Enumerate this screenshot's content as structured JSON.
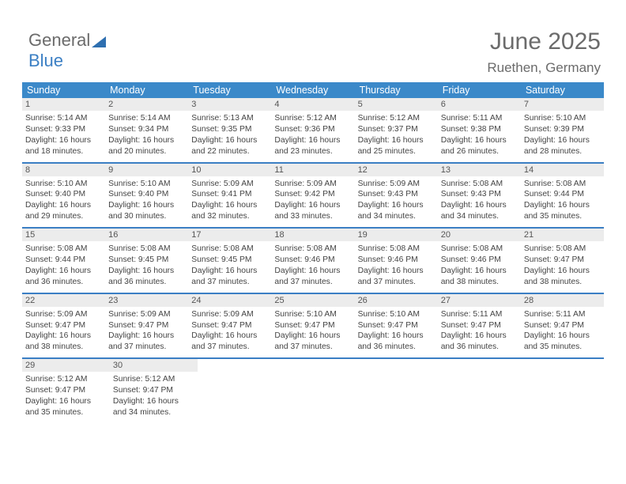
{
  "logo": {
    "text1": "General",
    "text2": "Blue"
  },
  "title": "June 2025",
  "location": "Ruethen, Germany",
  "colors": {
    "header_bg": "#3b89c9",
    "week_border": "#3b7fc4",
    "daynum_bg": "#ececec",
    "text": "#444444",
    "title_color": "#6b6b6b"
  },
  "day_headers": [
    "Sunday",
    "Monday",
    "Tuesday",
    "Wednesday",
    "Thursday",
    "Friday",
    "Saturday"
  ],
  "weeks": [
    [
      {
        "n": "1",
        "sr": "5:14 AM",
        "ss": "9:33 PM",
        "dlh": "16",
        "dlm": "18"
      },
      {
        "n": "2",
        "sr": "5:14 AM",
        "ss": "9:34 PM",
        "dlh": "16",
        "dlm": "20"
      },
      {
        "n": "3",
        "sr": "5:13 AM",
        "ss": "9:35 PM",
        "dlh": "16",
        "dlm": "22"
      },
      {
        "n": "4",
        "sr": "5:12 AM",
        "ss": "9:36 PM",
        "dlh": "16",
        "dlm": "23"
      },
      {
        "n": "5",
        "sr": "5:12 AM",
        "ss": "9:37 PM",
        "dlh": "16",
        "dlm": "25"
      },
      {
        "n": "6",
        "sr": "5:11 AM",
        "ss": "9:38 PM",
        "dlh": "16",
        "dlm": "26"
      },
      {
        "n": "7",
        "sr": "5:10 AM",
        "ss": "9:39 PM",
        "dlh": "16",
        "dlm": "28"
      }
    ],
    [
      {
        "n": "8",
        "sr": "5:10 AM",
        "ss": "9:40 PM",
        "dlh": "16",
        "dlm": "29"
      },
      {
        "n": "9",
        "sr": "5:10 AM",
        "ss": "9:40 PM",
        "dlh": "16",
        "dlm": "30"
      },
      {
        "n": "10",
        "sr": "5:09 AM",
        "ss": "9:41 PM",
        "dlh": "16",
        "dlm": "32"
      },
      {
        "n": "11",
        "sr": "5:09 AM",
        "ss": "9:42 PM",
        "dlh": "16",
        "dlm": "33"
      },
      {
        "n": "12",
        "sr": "5:09 AM",
        "ss": "9:43 PM",
        "dlh": "16",
        "dlm": "34"
      },
      {
        "n": "13",
        "sr": "5:08 AM",
        "ss": "9:43 PM",
        "dlh": "16",
        "dlm": "34"
      },
      {
        "n": "14",
        "sr": "5:08 AM",
        "ss": "9:44 PM",
        "dlh": "16",
        "dlm": "35"
      }
    ],
    [
      {
        "n": "15",
        "sr": "5:08 AM",
        "ss": "9:44 PM",
        "dlh": "16",
        "dlm": "36"
      },
      {
        "n": "16",
        "sr": "5:08 AM",
        "ss": "9:45 PM",
        "dlh": "16",
        "dlm": "36"
      },
      {
        "n": "17",
        "sr": "5:08 AM",
        "ss": "9:45 PM",
        "dlh": "16",
        "dlm": "37"
      },
      {
        "n": "18",
        "sr": "5:08 AM",
        "ss": "9:46 PM",
        "dlh": "16",
        "dlm": "37"
      },
      {
        "n": "19",
        "sr": "5:08 AM",
        "ss": "9:46 PM",
        "dlh": "16",
        "dlm": "37"
      },
      {
        "n": "20",
        "sr": "5:08 AM",
        "ss": "9:46 PM",
        "dlh": "16",
        "dlm": "38"
      },
      {
        "n": "21",
        "sr": "5:08 AM",
        "ss": "9:47 PM",
        "dlh": "16",
        "dlm": "38"
      }
    ],
    [
      {
        "n": "22",
        "sr": "5:09 AM",
        "ss": "9:47 PM",
        "dlh": "16",
        "dlm": "38"
      },
      {
        "n": "23",
        "sr": "5:09 AM",
        "ss": "9:47 PM",
        "dlh": "16",
        "dlm": "37"
      },
      {
        "n": "24",
        "sr": "5:09 AM",
        "ss": "9:47 PM",
        "dlh": "16",
        "dlm": "37"
      },
      {
        "n": "25",
        "sr": "5:10 AM",
        "ss": "9:47 PM",
        "dlh": "16",
        "dlm": "37"
      },
      {
        "n": "26",
        "sr": "5:10 AM",
        "ss": "9:47 PM",
        "dlh": "16",
        "dlm": "36"
      },
      {
        "n": "27",
        "sr": "5:11 AM",
        "ss": "9:47 PM",
        "dlh": "16",
        "dlm": "36"
      },
      {
        "n": "28",
        "sr": "5:11 AM",
        "ss": "9:47 PM",
        "dlh": "16",
        "dlm": "35"
      }
    ],
    [
      {
        "n": "29",
        "sr": "5:12 AM",
        "ss": "9:47 PM",
        "dlh": "16",
        "dlm": "35"
      },
      {
        "n": "30",
        "sr": "5:12 AM",
        "ss": "9:47 PM",
        "dlh": "16",
        "dlm": "34"
      },
      null,
      null,
      null,
      null,
      null
    ]
  ]
}
